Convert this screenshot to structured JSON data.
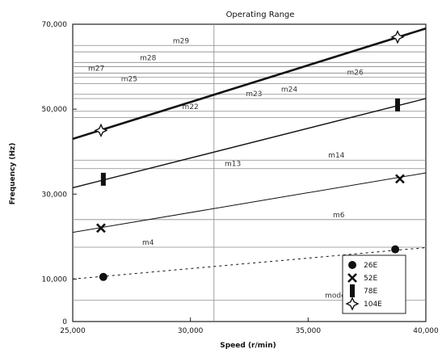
{
  "chart_data": {
    "type": "line",
    "title": "Operating Range",
    "xlabel": "Speed (r/min)",
    "ylabel": "Frequency (Hz)",
    "xlim": [
      25000,
      40000
    ],
    "ylim": [
      0,
      70000
    ],
    "x_ticks": [
      25000,
      30000,
      35000,
      40000
    ],
    "x_tick_labels": [
      "25,000",
      "30,000",
      "35,000",
      "40,000"
    ],
    "y_ticks": [
      0,
      10000,
      30000,
      50000,
      70000
    ],
    "y_tick_labels": [
      "0",
      "10,000",
      "30,000",
      "50,000",
      "70,000"
    ],
    "grid": false,
    "legend_position": "bottom-right",
    "modes": [
      {
        "label": "mode 1",
        "y": 5000,
        "label_x": 36300
      },
      {
        "label": "m4",
        "y": 17500,
        "label_x": 28200
      },
      {
        "label": "m6",
        "y": 24000,
        "label_x": 36300
      },
      {
        "label": "m13",
        "y": 36000,
        "label_x": 31800
      },
      {
        "label": "m14",
        "y": 38000,
        "label_x": 36200
      },
      {
        "label": "m22",
        "y": 49500,
        "label_x": 30000
      },
      {
        "label": "m23",
        "y": 52500,
        "label_x": 32700
      },
      {
        "label": "m24",
        "y": 53500,
        "label_x": 34200
      },
      {
        "label": "m25",
        "y": 56000,
        "label_x": 27400
      },
      {
        "label": "m26",
        "y": 57500,
        "label_x": 37000
      },
      {
        "label": "m27",
        "y": 58500,
        "label_x": 26000
      },
      {
        "label": "m28",
        "y": 61000,
        "label_x": 28200
      },
      {
        "label": "m29",
        "y": 65000,
        "label_x": 29600
      }
    ],
    "extra_lines": [
      60000,
      63500,
      48000
    ],
    "series": [
      {
        "name": "26E",
        "marker": "circle",
        "line_weight": "thin",
        "line_style": "dashed",
        "points": [
          [
            26300,
            10500
          ],
          [
            38700,
            17000
          ]
        ],
        "line": [
          [
            25000,
            10000
          ],
          [
            40000,
            17400
          ]
        ]
      },
      {
        "name": "52E",
        "marker": "x",
        "line_weight": "thin",
        "line_style": "solid",
        "points": [
          [
            26200,
            22000
          ],
          [
            38900,
            33600
          ]
        ],
        "line": [
          [
            25000,
            21000
          ],
          [
            40000,
            35000
          ]
        ]
      },
      {
        "name": "78E",
        "marker": "bar",
        "line_weight": "medium",
        "line_style": "solid",
        "points": [
          [
            26300,
            33500
          ],
          [
            38800,
            51000
          ]
        ],
        "line": [
          [
            25000,
            31500
          ],
          [
            40000,
            52500
          ]
        ]
      },
      {
        "name": "104E",
        "marker": "openstar",
        "line_weight": "thick",
        "line_style": "solid",
        "points": [
          [
            26200,
            45000
          ],
          [
            38800,
            67000
          ]
        ],
        "line": [
          [
            25000,
            43000
          ],
          [
            40000,
            69000
          ]
        ]
      }
    ]
  }
}
